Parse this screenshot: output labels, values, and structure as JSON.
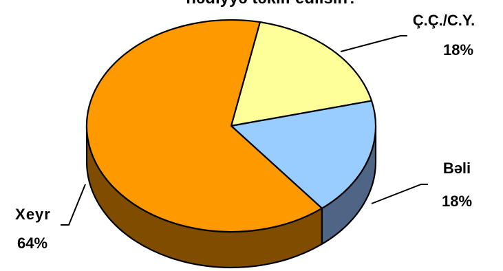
{
  "chart_data": {
    "type": "pie",
    "title": "hədiyyə təklif edilsin?",
    "slices": [
      {
        "label": "Ç.Ç./C.Y.",
        "value": 18,
        "value_label": "18%",
        "top_color": "#FFFF99",
        "side_color": "#B8B86E"
      },
      {
        "label": "Bəli",
        "value": 18,
        "value_label": "18%",
        "top_color": "#99CCFF",
        "side_color": "#4F6585"
      },
      {
        "label": "Xeyr",
        "value": 64,
        "value_label": "64%",
        "top_color": "#FF9900",
        "side_color": "#7F4C00"
      }
    ],
    "legend": "none",
    "style": "3d"
  }
}
